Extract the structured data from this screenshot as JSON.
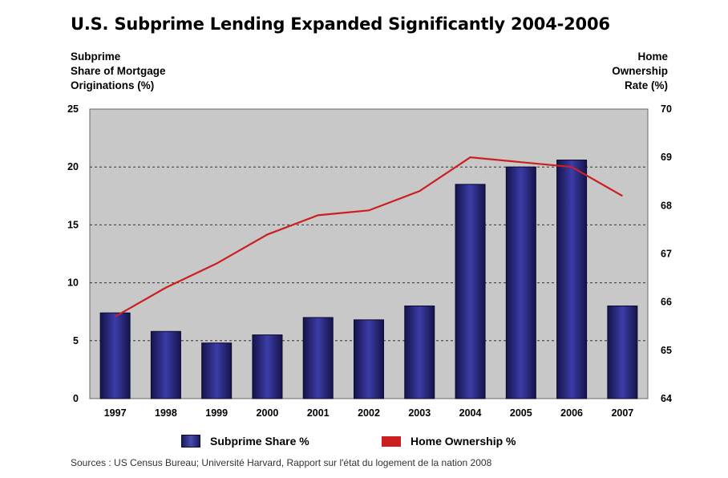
{
  "title": "U.S. Subprime Lending Expanded Significantly 2004-2006",
  "left_axis_label": "Subprime\nShare of Mortgage\nOriginations (%)",
  "right_axis_label": "Home\nOwnership\nRate (%)",
  "legend": {
    "bar": "Subprime Share %",
    "line": "Home Ownership %"
  },
  "source": "Sources :  US Census Bureau; Université Harvard, Rapport sur l'état du logement de la nation 2008",
  "colors": {
    "plot_bg": "#c8c8c8",
    "bar": "#2a2a80",
    "line": "#cc1f1f"
  },
  "chart_data": {
    "type": "bar",
    "categories": [
      "1997",
      "1998",
      "1999",
      "2000",
      "2001",
      "2002",
      "2003",
      "2004",
      "2005",
      "2006",
      "2007"
    ],
    "series": [
      {
        "name": "Subprime Share %",
        "type": "bar",
        "axis": "left",
        "values": [
          7.4,
          5.8,
          4.8,
          5.5,
          7.0,
          6.8,
          8.0,
          18.5,
          20.0,
          20.6,
          8.0
        ]
      },
      {
        "name": "Home Ownership %",
        "type": "line",
        "axis": "right",
        "values": [
          65.7,
          66.3,
          66.8,
          67.4,
          67.8,
          67.9,
          68.3,
          69.0,
          68.9,
          68.8,
          68.2
        ]
      }
    ],
    "ylim_left": [
      0,
      25
    ],
    "yticks_left": [
      0,
      5,
      10,
      15,
      20,
      25
    ],
    "ylim_right": [
      64,
      70
    ],
    "yticks_right": [
      64,
      65,
      66,
      67,
      68,
      69,
      70
    ],
    "grid": "horizontal dashed"
  }
}
